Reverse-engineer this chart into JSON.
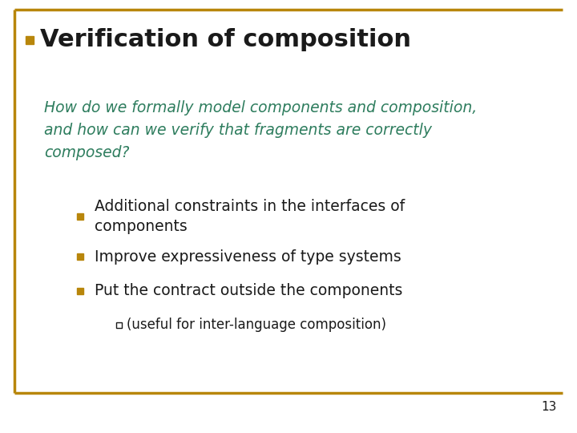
{
  "title": "Verification of composition",
  "title_color": "#1a1a1a",
  "title_bullet_color": "#B8860B",
  "subtitle_text": "How do we formally model components and composition,\nand how can we verify that fragments are correctly\ncomposed?",
  "subtitle_color": "#2E7D5E",
  "bullet_color": "#B8860B",
  "bullet_items": [
    "Additional constraints in the interfaces of\ncomponents",
    "Improve expressiveness of type systems",
    "Put the contract outside the components"
  ],
  "sub_bullet": "(useful for inter-language composition)",
  "body_text_color": "#1a1a1a",
  "border_color": "#B8860B",
  "background_color": "#FFFFFF",
  "page_number": "13",
  "title_fontsize": 22,
  "subtitle_fontsize": 13.5,
  "body_fontsize": 13.5,
  "sub_bullet_fontsize": 12
}
